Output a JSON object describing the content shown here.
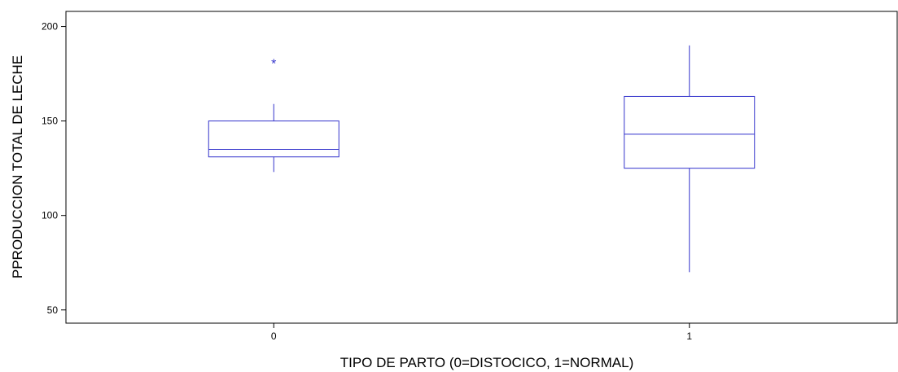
{
  "chart_data": {
    "type": "boxplot",
    "xlabel": "TIPO DE PARTO (0=DISTOCICO, 1=NORMAL)",
    "ylabel": "PPRODUCCION TOTAL DE LECHE",
    "ylim": [
      43,
      208
    ],
    "yticks": [
      50,
      100,
      150,
      200
    ],
    "grid": false,
    "color": "#3333cc",
    "categories": [
      "0",
      "1"
    ],
    "boxes": [
      {
        "category": "0",
        "whisker_low": 123,
        "q1": 131,
        "median": 135,
        "q3": 150,
        "whisker_high": 159,
        "outliers": [
          181
        ]
      },
      {
        "category": "1",
        "whisker_low": 70,
        "q1": 125,
        "median": 143,
        "q3": 163,
        "whisker_high": 190,
        "outliers": []
      }
    ]
  }
}
